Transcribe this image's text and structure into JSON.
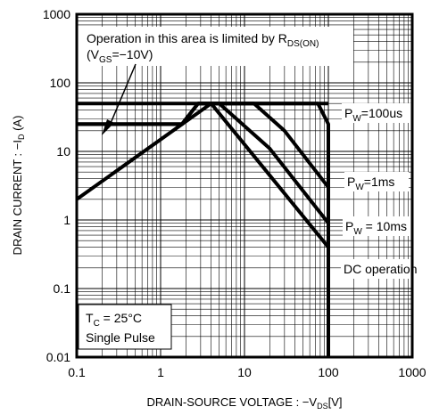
{
  "chart_data": {
    "type": "line",
    "xscale": "log",
    "yscale": "log",
    "xlim": [
      0.1,
      1000
    ],
    "ylim": [
      0.01,
      1000
    ],
    "grid": true,
    "x_ticks": [
      "0.1",
      "1",
      "10",
      "100",
      "1000"
    ],
    "y_ticks": [
      "0.01",
      "0.1",
      "1",
      "10",
      "100",
      "1000"
    ],
    "xlabel": {
      "main": "DRAIN-SOURCE VOLTAGE : −V",
      "sub": "DS",
      "unit": "[V]"
    },
    "ylabel": {
      "main": "DRAIN CURRENT : −I",
      "sub": "D",
      "unit": " (A)"
    },
    "series": [
      {
        "name": "P_W=100us",
        "points": [
          [
            0.1,
            25
          ],
          [
            1.8,
            25
          ],
          [
            2.8,
            50
          ],
          [
            75,
            50
          ],
          [
            100,
            25
          ],
          [
            100,
            0.01
          ]
        ]
      },
      {
        "name": "P_W=1ms",
        "points": [
          [
            0.1,
            25
          ],
          [
            1.8,
            25
          ],
          [
            2.8,
            50
          ],
          [
            13,
            50
          ],
          [
            30,
            20
          ],
          [
            100,
            3
          ]
        ]
      },
      {
        "name": "P_W=10ms",
        "points": [
          [
            0.1,
            25
          ],
          [
            1.8,
            25
          ],
          [
            2.8,
            50
          ],
          [
            5,
            50
          ],
          [
            20,
            11
          ],
          [
            100,
            0.9
          ]
        ]
      },
      {
        "name": "DC operation",
        "points": [
          [
            0.1,
            2
          ],
          [
            4,
            50
          ],
          [
            100,
            0.4
          ]
        ]
      },
      {
        "name": "R_DS(ON) limit",
        "points": [
          [
            0.1,
            50
          ],
          [
            100,
            50
          ]
        ]
      }
    ],
    "annotations": {
      "rds_line1": "Operation in this area is limited by R",
      "rds_line1_sub": "DS(ON)",
      "rds_line2_a": "(V",
      "rds_line2_sub": "GS",
      "rds_line2_b": "=−10V)",
      "pw100": [
        "P",
        "W",
        "=100us"
      ],
      "pw1ms": [
        "P",
        "W",
        "=1ms"
      ],
      "pw10ms": [
        "P",
        "W",
        " = 10ms"
      ],
      "dc": "DC operation",
      "tc_a": "T",
      "tc_sub": "C",
      "tc_b": " = 25°C",
      "single": "Single Pulse"
    }
  }
}
